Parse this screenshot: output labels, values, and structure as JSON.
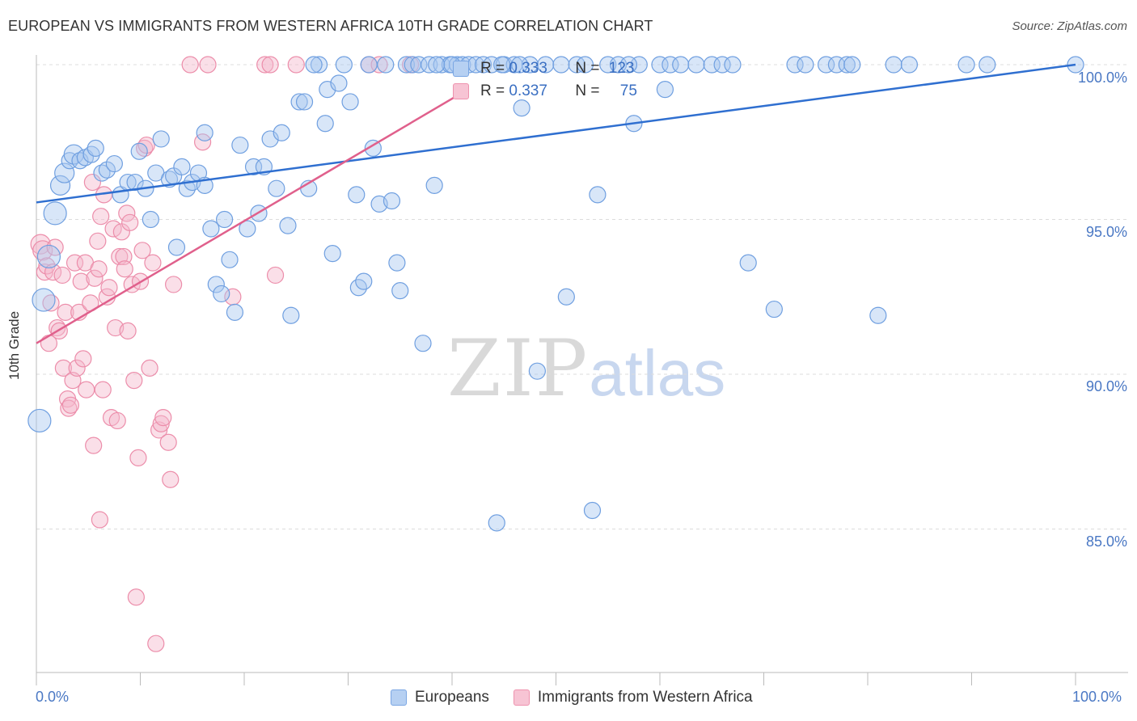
{
  "header": {
    "title": "EUROPEAN VS IMMIGRANTS FROM WESTERN AFRICA 10TH GRADE CORRELATION CHART",
    "source": "Source: ZipAtlas.com"
  },
  "watermark": {
    "zip": "ZIP",
    "atlas": "atlas"
  },
  "legend": {
    "blue": {
      "r_label": "R =",
      "r_value": "0.333",
      "n_label": "N =",
      "n_value": "123"
    },
    "pink": {
      "r_label": "R =",
      "r_value": "0.337",
      "n_label": "N =",
      "n_value": "75"
    }
  },
  "bottom_legend": {
    "blue": "Europeans",
    "pink": "Immigrants from Western Africa"
  },
  "colors": {
    "blue_fill": "#a9c8f0",
    "blue_stroke": "#6f9fe0",
    "blue_line": "#2f6fd0",
    "pink_fill": "#f5b8cb",
    "pink_stroke": "#ec8daa",
    "pink_line": "#e0608c"
  },
  "chart_data": {
    "type": "scatter",
    "title": "EUROPEAN VS IMMIGRANTS FROM WESTERN AFRICA 10TH GRADE CORRELATION CHART",
    "xlabel": "",
    "ylabel": "10th Grade",
    "xlim": [
      0,
      100
    ],
    "ylim": [
      80.5,
      100.5
    ],
    "y_ticks": [
      "100.0%",
      "95.0%",
      "90.0%",
      "85.0%"
    ],
    "x_ticks": [
      "0.0%",
      "100.0%"
    ],
    "x_tick_values": [
      0,
      100
    ],
    "y_tick_values": [
      100,
      95,
      90,
      85
    ],
    "series": [
      {
        "name": "Europeans",
        "r": 0.333,
        "n": 123,
        "trend": {
          "x0": 0,
          "y0": 95.55,
          "x1": 100,
          "y1": 100.0
        },
        "points": [
          [
            0.3,
            88.5,
            4
          ],
          [
            0.7,
            92.4,
            4
          ],
          [
            1.2,
            93.8,
            4
          ],
          [
            1.8,
            95.2,
            4
          ],
          [
            2.3,
            96.1,
            3
          ],
          [
            2.7,
            96.5,
            3
          ],
          [
            3.2,
            96.9,
            2
          ],
          [
            3.6,
            97.1,
            3
          ],
          [
            4.2,
            96.9,
            2
          ],
          [
            4.7,
            97.0,
            2
          ],
          [
            5.3,
            97.1,
            2
          ],
          [
            5.7,
            97.3,
            2
          ],
          [
            6.3,
            96.5,
            2
          ],
          [
            6.8,
            96.6,
            2
          ],
          [
            7.5,
            96.8,
            2
          ],
          [
            8.1,
            95.8,
            2
          ],
          [
            8.8,
            96.2,
            2
          ],
          [
            9.5,
            96.2,
            2
          ],
          [
            9.9,
            97.2,
            2
          ],
          [
            10.5,
            96.0,
            2
          ],
          [
            11.0,
            95.0,
            2
          ],
          [
            11.5,
            96.5,
            2
          ],
          [
            12.0,
            97.6,
            2
          ],
          [
            12.8,
            96.3,
            2
          ],
          [
            13.2,
            96.4,
            2
          ],
          [
            13.5,
            94.1,
            2
          ],
          [
            14.0,
            96.7,
            2
          ],
          [
            14.5,
            96.0,
            2
          ],
          [
            15.0,
            96.2,
            2
          ],
          [
            15.6,
            96.5,
            2
          ],
          [
            16.2,
            96.1,
            2
          ],
          [
            16.2,
            97.8,
            2
          ],
          [
            16.8,
            94.7,
            2
          ],
          [
            17.3,
            92.9,
            2
          ],
          [
            17.8,
            92.6,
            2
          ],
          [
            18.1,
            95.0,
            2
          ],
          [
            18.6,
            93.7,
            2
          ],
          [
            19.1,
            92.0,
            2
          ],
          [
            19.6,
            97.4,
            2
          ],
          [
            20.3,
            94.7,
            2
          ],
          [
            20.9,
            96.7,
            2
          ],
          [
            21.4,
            95.2,
            2
          ],
          [
            21.9,
            96.7,
            2
          ],
          [
            22.5,
            97.6,
            2
          ],
          [
            23.1,
            96.0,
            2
          ],
          [
            23.6,
            97.8,
            2
          ],
          [
            24.2,
            94.8,
            2
          ],
          [
            24.5,
            91.9,
            2
          ],
          [
            25.3,
            98.8,
            2
          ],
          [
            25.8,
            98.8,
            2
          ],
          [
            26.2,
            96.0,
            2
          ],
          [
            27.2,
            100,
            2
          ],
          [
            26.7,
            100,
            2
          ],
          [
            27.8,
            98.1,
            2
          ],
          [
            28.0,
            99.2,
            2
          ],
          [
            28.5,
            93.9,
            2
          ],
          [
            29.1,
            99.4,
            2
          ],
          [
            29.6,
            100,
            2
          ],
          [
            30.2,
            98.8,
            2
          ],
          [
            30.8,
            95.8,
            2
          ],
          [
            31.0,
            92.8,
            2
          ],
          [
            31.5,
            93.0,
            2
          ],
          [
            32.0,
            100,
            2
          ],
          [
            32.4,
            97.3,
            2
          ],
          [
            33.0,
            95.5,
            2
          ],
          [
            33.6,
            100,
            2
          ],
          [
            34.2,
            95.6,
            2
          ],
          [
            34.7,
            93.6,
            2
          ],
          [
            35.0,
            92.7,
            2
          ],
          [
            35.6,
            100,
            2
          ],
          [
            36.2,
            100,
            2
          ],
          [
            36.8,
            100,
            2
          ],
          [
            37.2,
            91.0,
            2
          ],
          [
            37.8,
            100,
            2
          ],
          [
            38.3,
            96.1,
            2
          ],
          [
            39.0,
            100,
            2
          ],
          [
            39.8,
            100,
            2
          ],
          [
            40.5,
            100,
            2
          ],
          [
            41.0,
            100,
            2
          ],
          [
            41.6,
            100,
            2
          ],
          [
            42.3,
            100,
            2
          ],
          [
            43.0,
            100,
            2
          ],
          [
            43.8,
            100,
            2
          ],
          [
            44.3,
            85.2,
            2
          ],
          [
            45.0,
            100,
            2
          ],
          [
            46.0,
            100,
            2
          ],
          [
            46.7,
            98.6,
            2
          ],
          [
            47.5,
            100,
            2
          ],
          [
            48.2,
            90.1,
            2
          ],
          [
            49.0,
            100,
            2
          ],
          [
            50.5,
            100,
            2
          ],
          [
            51.0,
            92.5,
            2
          ],
          [
            52.0,
            100,
            2
          ],
          [
            53.5,
            85.6,
            2
          ],
          [
            54.0,
            95.8,
            2
          ],
          [
            55.0,
            100,
            2
          ],
          [
            56.0,
            100,
            2
          ],
          [
            57.5,
            98.1,
            2
          ],
          [
            58.0,
            100,
            2
          ],
          [
            60.0,
            100,
            2
          ],
          [
            60.5,
            99.2,
            2
          ],
          [
            61.0,
            100,
            2
          ],
          [
            62.0,
            100,
            2
          ],
          [
            63.5,
            100,
            2
          ],
          [
            65.0,
            100,
            2
          ],
          [
            66.0,
            100,
            2
          ],
          [
            67.0,
            100,
            2
          ],
          [
            68.5,
            93.6,
            2
          ],
          [
            71.0,
            92.1,
            2
          ],
          [
            73.0,
            100,
            2
          ],
          [
            76.0,
            100,
            2
          ],
          [
            77.0,
            100,
            2
          ],
          [
            78.0,
            100,
            2
          ],
          [
            78.5,
            100,
            2
          ],
          [
            81.0,
            91.9,
            2
          ],
          [
            82.5,
            100,
            2
          ],
          [
            84.0,
            100,
            2
          ],
          [
            89.5,
            100,
            2
          ],
          [
            91.5,
            100,
            2
          ],
          [
            100.0,
            100,
            2
          ],
          [
            74.0,
            100,
            2
          ],
          [
            38.5,
            100,
            2
          ],
          [
            40.0,
            100,
            2
          ],
          [
            44.8,
            100,
            2
          ],
          [
            46.5,
            100,
            2
          ],
          [
            57.0,
            100,
            2
          ],
          [
            52.8,
            100,
            2
          ]
        ]
      },
      {
        "name": "Immigrants from Western Africa",
        "r": 0.337,
        "n": 75,
        "trend": {
          "x0": 0,
          "y0": 91.0,
          "x1": 40.5,
          "y1": 99.0
        },
        "points": [
          [
            0.4,
            94.2,
            3
          ],
          [
            0.6,
            94.0,
            3
          ],
          [
            0.8,
            93.3,
            2
          ],
          [
            1.0,
            93.5,
            2
          ],
          [
            1.2,
            91.0,
            2
          ],
          [
            1.4,
            92.3,
            2
          ],
          [
            1.6,
            93.3,
            2
          ],
          [
            1.8,
            94.1,
            2
          ],
          [
            2.0,
            91.5,
            2
          ],
          [
            2.2,
            91.4,
            2
          ],
          [
            2.5,
            93.2,
            2
          ],
          [
            2.6,
            90.2,
            2
          ],
          [
            2.8,
            92.0,
            2
          ],
          [
            3.0,
            89.2,
            2
          ],
          [
            3.1,
            88.9,
            2
          ],
          [
            3.3,
            89.0,
            2
          ],
          [
            3.5,
            89.8,
            2
          ],
          [
            3.7,
            93.6,
            2
          ],
          [
            3.9,
            90.2,
            2
          ],
          [
            4.1,
            92.0,
            2
          ],
          [
            4.3,
            93.0,
            2
          ],
          [
            4.5,
            90.5,
            2
          ],
          [
            4.7,
            93.6,
            2
          ],
          [
            4.8,
            89.5,
            2
          ],
          [
            5.2,
            92.3,
            2
          ],
          [
            5.4,
            96.2,
            2
          ],
          [
            5.5,
            87.7,
            2
          ],
          [
            5.6,
            93.1,
            2
          ],
          [
            5.9,
            94.3,
            2
          ],
          [
            6.0,
            93.4,
            2
          ],
          [
            6.2,
            95.1,
            2
          ],
          [
            6.4,
            89.5,
            2
          ],
          [
            6.5,
            95.8,
            2
          ],
          [
            6.8,
            92.5,
            2
          ],
          [
            7.0,
            92.8,
            2
          ],
          [
            7.2,
            88.6,
            2
          ],
          [
            7.4,
            94.7,
            2
          ],
          [
            7.6,
            91.5,
            2
          ],
          [
            7.8,
            88.5,
            2
          ],
          [
            8.0,
            93.8,
            2
          ],
          [
            8.2,
            94.6,
            2
          ],
          [
            8.4,
            93.8,
            2
          ],
          [
            8.5,
            93.4,
            2
          ],
          [
            8.7,
            95.2,
            2
          ],
          [
            8.8,
            91.4,
            2
          ],
          [
            9.0,
            94.9,
            2
          ],
          [
            9.2,
            92.9,
            2
          ],
          [
            9.4,
            89.8,
            2
          ],
          [
            9.6,
            82.8,
            2
          ],
          [
            9.8,
            87.3,
            2
          ],
          [
            10.0,
            93.0,
            2
          ],
          [
            10.2,
            94.0,
            2
          ],
          [
            10.4,
            97.3,
            2
          ],
          [
            10.6,
            97.4,
            2
          ],
          [
            10.9,
            90.2,
            2
          ],
          [
            11.2,
            93.6,
            2
          ],
          [
            11.5,
            81.3,
            2
          ],
          [
            11.8,
            88.2,
            2
          ],
          [
            12.0,
            88.4,
            2
          ],
          [
            12.2,
            88.6,
            2
          ],
          [
            12.7,
            87.8,
            2
          ],
          [
            12.9,
            86.6,
            2
          ],
          [
            13.2,
            92.9,
            2
          ],
          [
            16.0,
            97.5,
            2
          ],
          [
            16.5,
            100,
            2
          ],
          [
            18.9,
            92.5,
            2
          ],
          [
            22.0,
            100,
            2
          ],
          [
            22.5,
            100,
            2
          ],
          [
            25.0,
            100,
            2
          ],
          [
            32.0,
            100,
            2
          ],
          [
            33.0,
            100,
            2
          ],
          [
            36.0,
            100,
            2
          ],
          [
            6.1,
            85.3,
            2
          ],
          [
            14.8,
            100,
            2
          ],
          [
            23.0,
            93.2,
            2
          ]
        ]
      }
    ]
  }
}
